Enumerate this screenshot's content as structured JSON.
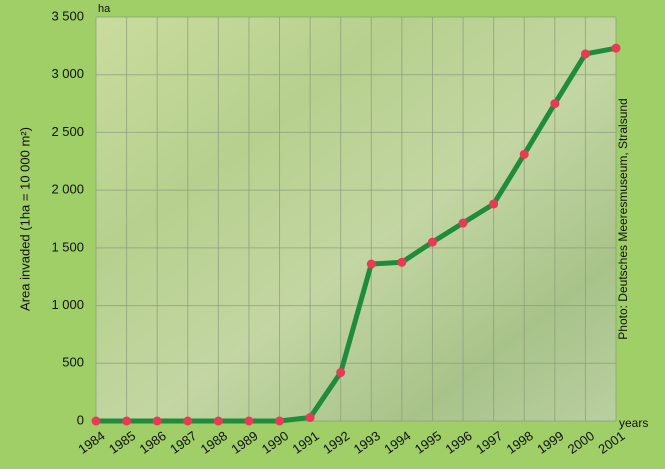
{
  "chart_data": {
    "type": "line",
    "y_label": "Area invaded (1ha = 10 000 m²)",
    "y_unit": "ha",
    "x_unit": "years",
    "credit": "Photo: Deutsches Meeresmuseum, Stralsund",
    "categories": [
      "1984",
      "1985",
      "1986",
      "1987",
      "1988",
      "1989",
      "1990",
      "1991",
      "1992",
      "1993",
      "1994",
      "1995",
      "1996",
      "1997",
      "1998",
      "1999",
      "2000",
      "2001"
    ],
    "series": [
      {
        "name": "Area invaded",
        "color": "#1f8b3b",
        "marker_color": "#e83a55",
        "values": [
          0,
          0,
          0,
          0,
          0,
          0,
          0,
          30,
          420,
          1360,
          1375,
          1550,
          1715,
          1880,
          2310,
          2750,
          3180,
          3230
        ]
      }
    ],
    "ylim": [
      0,
      3500
    ],
    "yticks": [
      0,
      500,
      {
        "value": 1000,
        "label": "1 000"
      },
      {
        "value": 1500,
        "label": "1 500"
      },
      {
        "value": 2000,
        "label": "2 000"
      },
      {
        "value": 2500,
        "label": "2 500"
      },
      {
        "value": 3000,
        "label": "3 000"
      },
      {
        "value": 3500,
        "label": "3 500"
      }
    ],
    "grid": true
  }
}
